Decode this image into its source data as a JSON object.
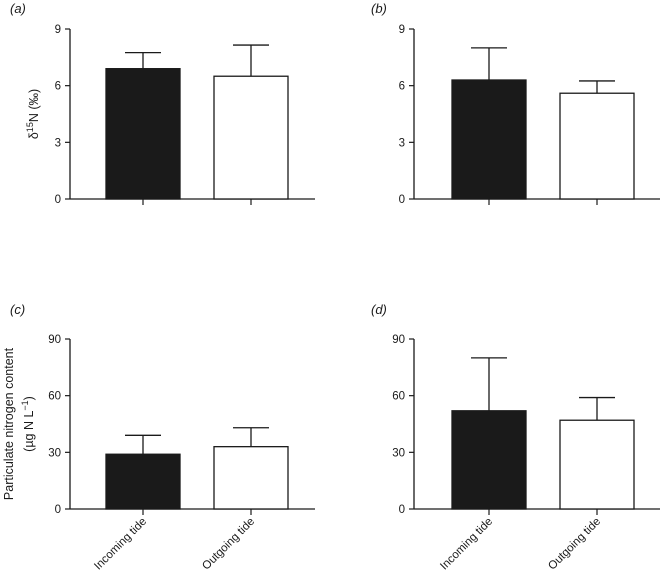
{
  "chart_data": [
    {
      "type": "bar",
      "panel": "(a)",
      "ylabel": "δ15N (‰)",
      "ylabel_parts": {
        "prefix": "δ",
        "sup": "15",
        "suffix": "N (‰)"
      },
      "ylim": [
        0,
        9
      ],
      "yticks": [
        0,
        3,
        6,
        9
      ],
      "categories": [
        "Incoming tide",
        "Outgoing tide"
      ],
      "show_category_labels": false,
      "values": [
        6.9,
        6.5
      ],
      "errors": [
        0.85,
        1.65
      ],
      "fills": [
        "#1a1a1a",
        "#ffffff"
      ]
    },
    {
      "type": "bar",
      "panel": "(b)",
      "ylim": [
        0,
        9
      ],
      "yticks": [
        0,
        3,
        6,
        9
      ],
      "categories": [
        "Incoming tide",
        "Outgoing tide"
      ],
      "show_category_labels": false,
      "values": [
        6.3,
        5.6
      ],
      "errors": [
        1.7,
        0.65
      ],
      "fills": [
        "#1a1a1a",
        "#ffffff"
      ]
    },
    {
      "type": "bar",
      "panel": "(c)",
      "ylabel_line1": "Particulate nitrogen content",
      "ylabel_line2_parts": {
        "prefix": "(µg N L",
        "sup": "−1",
        "suffix": ")"
      },
      "ylim": [
        0,
        90
      ],
      "yticks": [
        0,
        30,
        60,
        90
      ],
      "categories": [
        "Incoming tide",
        "Outgoing tide"
      ],
      "show_category_labels": true,
      "values": [
        29,
        33
      ],
      "errors": [
        10,
        10
      ],
      "fills": [
        "#1a1a1a",
        "#ffffff"
      ]
    },
    {
      "type": "bar",
      "panel": "(d)",
      "ylim": [
        0,
        90
      ],
      "yticks": [
        0,
        30,
        60,
        90
      ],
      "categories": [
        "Incoming tide",
        "Outgoing tide"
      ],
      "show_category_labels": true,
      "values": [
        52,
        47
      ],
      "errors": [
        28,
        12
      ],
      "fills": [
        "#1a1a1a",
        "#ffffff"
      ]
    }
  ]
}
